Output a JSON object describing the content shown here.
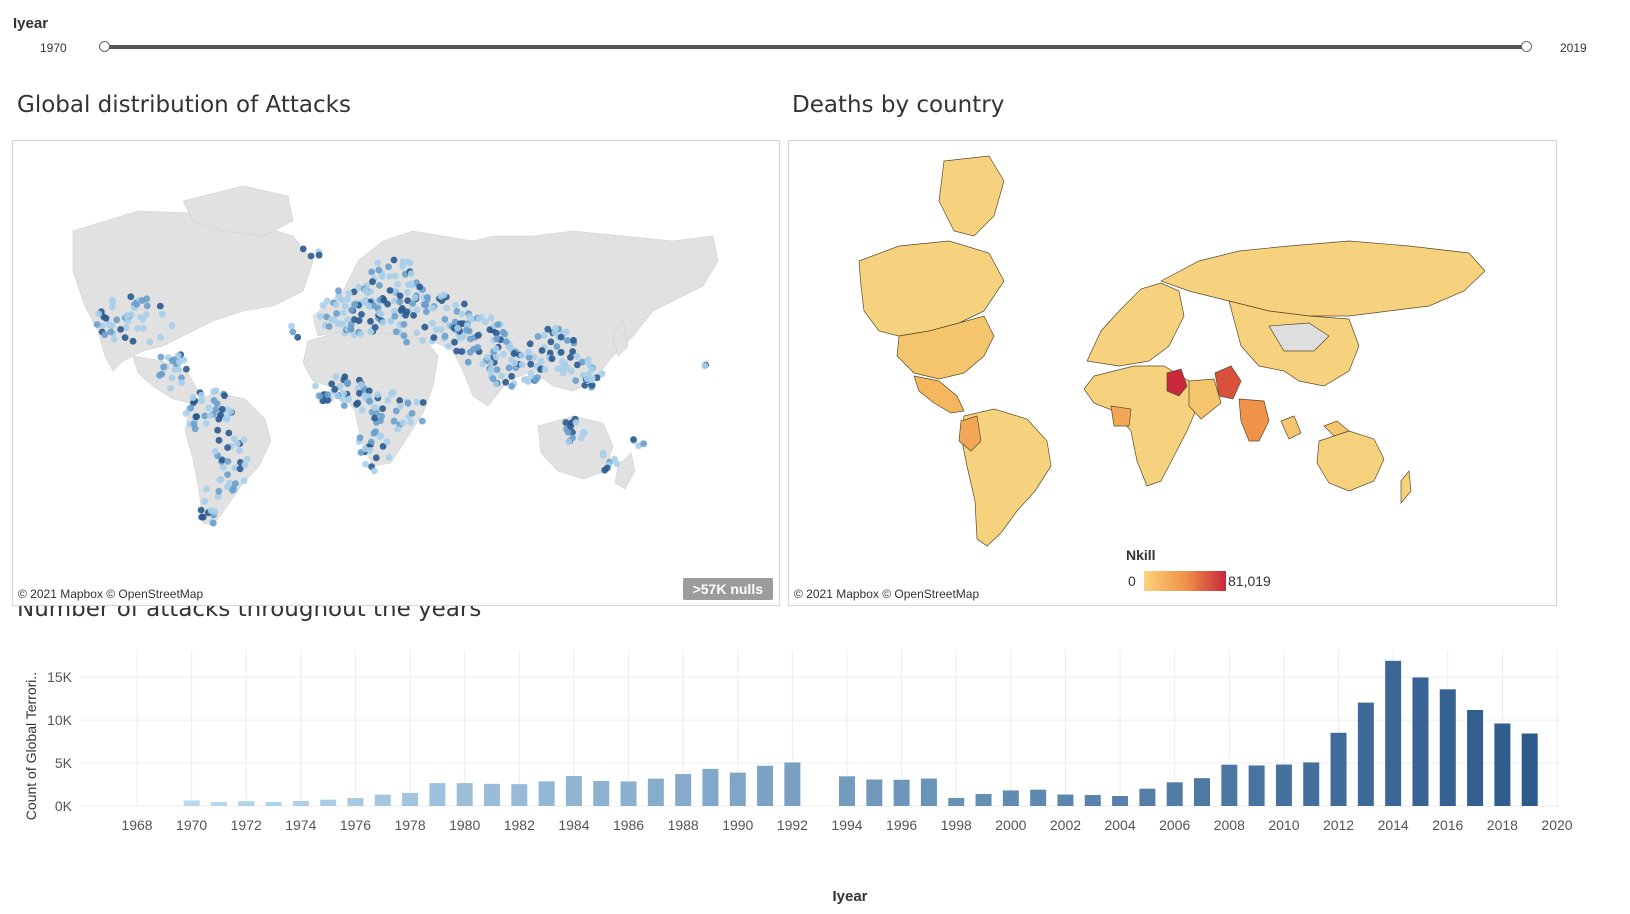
{
  "filter": {
    "title": "Iyear",
    "min_label": "1970",
    "max_label": "2019",
    "range": [
      1970,
      2019
    ]
  },
  "map_attacks": {
    "title": "Global distribution of Attacks",
    "attribution": "© 2021 Mapbox © OpenStreetMap",
    "nulls_badge": ">57K nulls",
    "point_color_light": "#a9cfea",
    "point_color_dark": "#2b5a8e"
  },
  "map_deaths": {
    "title": "Deaths by country",
    "attribution": "© 2021 Mapbox © OpenStreetMap",
    "legend": {
      "title": "Nkill",
      "min": "0",
      "max": "81,019",
      "color_low": "#fbd27a",
      "color_high": "#c8283a"
    }
  },
  "chart_data": {
    "type": "bar",
    "title": "Number of attacks throughout the years",
    "xlabel": "Iyear",
    "ylabel": "Count of Global Terrori..",
    "x": [
      1970,
      1971,
      1972,
      1973,
      1974,
      1975,
      1976,
      1977,
      1978,
      1979,
      1980,
      1981,
      1982,
      1983,
      1984,
      1985,
      1986,
      1987,
      1988,
      1989,
      1990,
      1991,
      1992,
      1994,
      1995,
      1996,
      1997,
      1998,
      1999,
      2000,
      2001,
      2002,
      2003,
      2004,
      2005,
      2006,
      2007,
      2008,
      2009,
      2010,
      2011,
      2012,
      2013,
      2014,
      2015,
      2016,
      2017,
      2018,
      2019
    ],
    "values": [
      651,
      471,
      568,
      473,
      581,
      740,
      923,
      1319,
      1526,
      2662,
      2662,
      2586,
      2544,
      2870,
      3495,
      2915,
      2860,
      3183,
      3721,
      4324,
      3887,
      4683,
      5071,
      3456,
      3081,
      3058,
      3197,
      934,
      1395,
      1814,
      1906,
      1333,
      1278,
      1166,
      2017,
      2758,
      3242,
      4805,
      4721,
      4826,
      5076,
      8522,
      12036,
      16903,
      14965,
      13587,
      11180,
      9607,
      8441
    ],
    "xticks": [
      "1968",
      "1970",
      "1972",
      "1974",
      "1976",
      "1978",
      "1980",
      "1982",
      "1984",
      "1986",
      "1988",
      "1990",
      "1992",
      "1994",
      "1996",
      "1998",
      "2000",
      "2002",
      "2004",
      "2006",
      "2008",
      "2010",
      "2012",
      "2014",
      "2016",
      "2018",
      "2020"
    ],
    "yticks": [
      "0K",
      "5K",
      "10K",
      "15K"
    ],
    "xlim": [
      1968,
      2020
    ],
    "ylim": [
      0,
      17000
    ],
    "grid": true,
    "color_low": "#b8d9ef",
    "color_high": "#2c5a8c"
  }
}
